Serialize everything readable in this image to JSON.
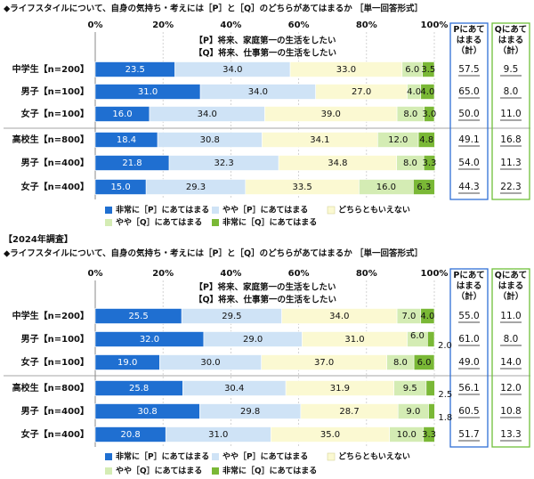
{
  "colors": {
    "strong_p": "#1f6fd1",
    "some_p": "#cfe3f6",
    "neutral": "#fbf9d2",
    "some_q": "#d4ecb4",
    "strong_q": "#7ab836",
    "p_box_border": "#2f6fd6",
    "q_box_border": "#6fbf3a",
    "grid": "#c8c8c8"
  },
  "chart_data": [
    {
      "type": "bar",
      "stacked": true,
      "orientation": "horizontal",
      "title": "◆ライフスタイルについて、自身の気持ち・考えには［P］と［Q］のどちらがあてはまるか ［単一回答形式］",
      "statement_p": "【P】将来、家庭第一の生活をしたい",
      "statement_q": "【Q】将来、仕事第一の生活をしたい",
      "xlim": [
        0,
        100
      ],
      "x_ticks": [
        "0%",
        "20%",
        "40%",
        "60%",
        "80%",
        "100%"
      ],
      "categories": [
        "中学生【n=200】",
        "男子【n=100】",
        "女子【n=100】",
        "高校生【n=800】",
        "男子【n=400】",
        "女子【n=400】"
      ],
      "series": [
        {
          "name": "非常に［P］にあてはまる",
          "values": [
            23.5,
            31.0,
            16.0,
            18.4,
            21.8,
            15.0
          ]
        },
        {
          "name": "やや［P］にあてはまる",
          "values": [
            34.0,
            34.0,
            34.0,
            30.8,
            32.3,
            29.3
          ]
        },
        {
          "name": "どちらともいえない",
          "values": [
            33.0,
            27.0,
            39.0,
            34.1,
            34.8,
            33.5
          ]
        },
        {
          "name": "やや［Q］にあてはまる",
          "values": [
            6.0,
            4.0,
            8.0,
            12.0,
            8.0,
            16.0
          ]
        },
        {
          "name": "非常に［Q］にあてはまる",
          "values": [
            3.5,
            4.0,
            3.0,
            4.8,
            3.3,
            6.3
          ]
        }
      ],
      "summary_p_header": "Pにあてはまる（計）",
      "summary_q_header": "Qにあてはまる（計）",
      "summary_p": [
        "57.5",
        "65.0",
        "50.0",
        "49.1",
        "54.0",
        "44.3"
      ],
      "summary_q": [
        "9.5",
        "8.0",
        "11.0",
        "16.8",
        "11.3",
        "22.3"
      ]
    },
    {
      "type": "bar",
      "stacked": true,
      "orientation": "horizontal",
      "survey_label": "【2024年調査】",
      "title": "◆ライフスタイルについて、自身の気持ち・考えには［P］と［Q］のどちらがあてはまるか ［単一回答形式］",
      "statement_p": "【P】将来、家庭第一の生活をしたい",
      "statement_q": "【Q】将来、仕事第一の生活をしたい",
      "xlim": [
        0,
        100
      ],
      "x_ticks": [
        "0%",
        "20%",
        "40%",
        "60%",
        "80%",
        "100%"
      ],
      "categories": [
        "中学生【n=200】",
        "男子【n=100】",
        "女子【n=100】",
        "高校生【n=800】",
        "男子【n=400】",
        "女子【n=400】"
      ],
      "series": [
        {
          "name": "非常に［P］にあてはまる",
          "values": [
            25.5,
            32.0,
            19.0,
            25.8,
            30.8,
            20.8
          ]
        },
        {
          "name": "やや［P］にあてはまる",
          "values": [
            29.5,
            29.0,
            30.0,
            30.4,
            29.8,
            31.0
          ]
        },
        {
          "name": "どちらともいえない",
          "values": [
            34.0,
            31.0,
            37.0,
            31.9,
            28.7,
            35.0
          ]
        },
        {
          "name": "やや［Q］にあてはまる",
          "values": [
            7.0,
            6.0,
            8.0,
            9.5,
            9.0,
            10.0
          ]
        },
        {
          "name": "非常に［Q］にあてはまる",
          "values": [
            4.0,
            2.0,
            6.0,
            2.5,
            1.8,
            3.3
          ]
        }
      ],
      "summary_p_header": "Pにあてはまる（計）",
      "summary_q_header": "Qにあてはまる（計）",
      "summary_p": [
        "55.0",
        "61.0",
        "49.0",
        "56.1",
        "60.5",
        "51.7"
      ],
      "summary_q": [
        "11.0",
        "8.0",
        "14.0",
        "12.0",
        "10.8",
        "13.3"
      ]
    }
  ]
}
